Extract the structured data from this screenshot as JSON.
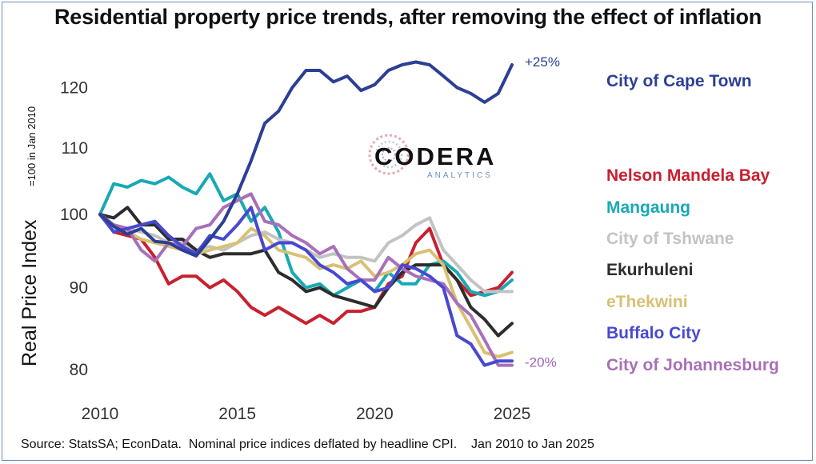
{
  "title": "Residential property price trends, after removing the effect of inflation",
  "source": "Source: StatsSA; EconData.  Nominal price indices deflated by headline CPI.    Jan 2010 to Jan 2025",
  "logo": {
    "name": "CODERA",
    "sub": "ANALYTICS"
  },
  "chart_data": {
    "type": "line",
    "title": "Residential property price trends, after removing the effect of inflation",
    "ylabel": "Real Price Index",
    "ylabel_sub": "=100 in Jan 2010",
    "xlabel": "",
    "y_scale": "log",
    "ylim": [
      78,
      128
    ],
    "xlim": [
      2010,
      2025.3
    ],
    "xticks": [
      "2010",
      "2015",
      "2020",
      "2025"
    ],
    "yticks": [
      "80",
      "90",
      "100",
      "110",
      "120"
    ],
    "grid": false,
    "legend": "right",
    "annotations": [
      {
        "text": "+25%",
        "series": "City of Cape Town",
        "color": "#2c3f94"
      },
      {
        "text": "-20%",
        "series": "City of Johannesburg",
        "color": "#9f62b8"
      }
    ],
    "series": [
      {
        "name": "City of Cape Town",
        "color": "#2c3f94",
        "x": [
          2010.0,
          2010.5,
          2011.0,
          2011.5,
          2012.0,
          2012.5,
          2013.0,
          2013.5,
          2014.0,
          2014.5,
          2015.0,
          2015.5,
          2016.0,
          2016.5,
          2017.0,
          2017.5,
          2018.0,
          2018.5,
          2019.0,
          2019.5,
          2020.0,
          2020.5,
          2021.0,
          2021.5,
          2022.0,
          2022.5,
          2023.0,
          2023.5,
          2024.0,
          2024.5,
          2025.0
        ],
        "y": [
          100,
          98.3,
          97.2,
          98,
          96.2,
          96,
          95,
          94.2,
          96.5,
          99,
          103,
          108,
          114,
          116,
          120,
          123,
          123,
          121,
          122,
          119.5,
          120.5,
          123,
          124,
          124.5,
          124,
          122,
          120,
          119,
          117.5,
          119,
          124
        ]
      },
      {
        "name": "Nelson Mandela Bay",
        "color": "#c8202f",
        "x": [
          2010.0,
          2010.5,
          2011.0,
          2011.5,
          2012.0,
          2012.5,
          2013.0,
          2013.5,
          2014.0,
          2014.5,
          2015.0,
          2015.5,
          2016.0,
          2016.5,
          2017.0,
          2017.5,
          2018.0,
          2018.5,
          2019.0,
          2019.5,
          2020.0,
          2020.5,
          2021.0,
          2021.5,
          2022.0,
          2022.5,
          2023.0,
          2023.5,
          2024.0,
          2024.5,
          2025.0
        ],
        "y": [
          100,
          97.5,
          97,
          96.5,
          94,
          90.5,
          91.5,
          91.5,
          90,
          91,
          89.5,
          87.5,
          86.5,
          87.5,
          86.5,
          85.5,
          86.5,
          85.5,
          87,
          87,
          87.5,
          90.5,
          91.5,
          96,
          98,
          93,
          91,
          89,
          89.5,
          90,
          92
        ]
      },
      {
        "name": "Mangaung",
        "color": "#18a9b5",
        "x": [
          2010.0,
          2010.5,
          2011.0,
          2011.5,
          2012.0,
          2012.5,
          2013.0,
          2013.5,
          2014.0,
          2014.5,
          2015.0,
          2015.5,
          2016.0,
          2016.5,
          2017.0,
          2017.5,
          2018.0,
          2018.5,
          2019.0,
          2019.5,
          2020.0,
          2020.5,
          2021.0,
          2021.5,
          2022.0,
          2022.5,
          2023.0,
          2023.5,
          2024.0,
          2024.5,
          2025.0
        ],
        "y": [
          100,
          104.5,
          104,
          105,
          104.5,
          105.5,
          104,
          103,
          106,
          102,
          103,
          99,
          101,
          97.5,
          92,
          90,
          90.5,
          89,
          90,
          91,
          89.5,
          92,
          90.5,
          90.5,
          93,
          93.5,
          92,
          89.5,
          89,
          89.5,
          91
        ]
      },
      {
        "name": "City of Tshwane",
        "color": "#c3c3c3",
        "x": [
          2010.0,
          2010.5,
          2011.0,
          2011.5,
          2012.0,
          2012.5,
          2013.0,
          2013.5,
          2014.0,
          2014.5,
          2015.0,
          2015.5,
          2016.0,
          2016.5,
          2017.0,
          2017.5,
          2018.0,
          2018.5,
          2019.0,
          2019.5,
          2020.0,
          2020.5,
          2021.0,
          2021.5,
          2022.0,
          2022.5,
          2023.0,
          2023.5,
          2024.0,
          2024.5,
          2025.0
        ],
        "y": [
          100,
          98,
          98,
          97.5,
          97,
          96,
          96,
          95,
          95.5,
          95,
          96,
          97,
          97.5,
          96.5,
          96,
          95,
          94,
          94.5,
          94,
          94,
          93.5,
          96,
          97,
          98.5,
          99.5,
          95,
          93,
          91,
          89.5,
          89.5,
          89.5
        ]
      },
      {
        "name": "Ekurhuleni",
        "color": "#2d2d2d",
        "x": [
          2010.0,
          2010.5,
          2011.0,
          2011.5,
          2012.0,
          2012.5,
          2013.0,
          2013.5,
          2014.0,
          2014.5,
          2015.0,
          2015.5,
          2016.0,
          2016.5,
          2017.0,
          2017.5,
          2018.0,
          2018.5,
          2019.0,
          2019.5,
          2020.0,
          2020.5,
          2021.0,
          2021.5,
          2022.0,
          2022.5,
          2023.0,
          2023.5,
          2024.0,
          2024.5,
          2025.0
        ],
        "y": [
          100,
          99.5,
          101,
          98.5,
          98.5,
          96.5,
          96.5,
          95,
          94,
          94.5,
          94.5,
          94.5,
          95,
          92,
          91,
          89.5,
          90,
          89,
          88.5,
          88,
          87.5,
          90,
          92,
          93,
          93,
          93,
          91,
          87.5,
          86,
          84,
          85.5
        ]
      },
      {
        "name": "eThekwini",
        "color": "#d8c173",
        "x": [
          2010.0,
          2010.5,
          2011.0,
          2011.5,
          2012.0,
          2012.5,
          2013.0,
          2013.5,
          2014.0,
          2014.5,
          2015.0,
          2015.5,
          2016.0,
          2016.5,
          2017.0,
          2017.5,
          2018.0,
          2018.5,
          2019.0,
          2019.5,
          2020.0,
          2020.5,
          2021.0,
          2021.5,
          2022.0,
          2022.5,
          2023.0,
          2023.5,
          2024.0,
          2024.5,
          2025.0
        ],
        "y": [
          100,
          98.5,
          97.5,
          96.5,
          96,
          95.5,
          95,
          94.5,
          95,
          95.5,
          96,
          98,
          97,
          95,
          94.5,
          94,
          92.5,
          93,
          92.5,
          93.5,
          91.5,
          92,
          93,
          94.5,
          95,
          93,
          88,
          85,
          82,
          81.5,
          82
        ]
      },
      {
        "name": "Buffalo City",
        "color": "#4848d1",
        "x": [
          2010.0,
          2010.5,
          2011.0,
          2011.5,
          2012.0,
          2012.5,
          2013.0,
          2013.5,
          2014.0,
          2014.5,
          2015.0,
          2015.5,
          2016.0,
          2016.5,
          2017.0,
          2017.5,
          2018.0,
          2018.5,
          2019.0,
          2019.5,
          2020.0,
          2020.5,
          2021.0,
          2021.5,
          2022.0,
          2022.5,
          2023.0,
          2023.5,
          2024.0,
          2024.5,
          2025.0
        ],
        "y": [
          100,
          97.5,
          98,
          98.5,
          99,
          97,
          95.5,
          94.5,
          97,
          96.5,
          98.5,
          101,
          95,
          96,
          96,
          95,
          93,
          92,
          90.5,
          91,
          89.5,
          90,
          93,
          92.5,
          91.5,
          90,
          84,
          83,
          80.5,
          81,
          81
        ]
      },
      {
        "name": "City of Johannesburg",
        "color": "#a870b8",
        "x": [
          2010.0,
          2010.5,
          2011.0,
          2011.5,
          2012.0,
          2012.5,
          2013.0,
          2013.5,
          2014.0,
          2014.5,
          2015.0,
          2015.5,
          2016.0,
          2016.5,
          2017.0,
          2017.5,
          2018.0,
          2018.5,
          2019.0,
          2019.5,
          2020.0,
          2020.5,
          2021.0,
          2021.5,
          2022.0,
          2022.5,
          2023.0,
          2023.5,
          2024.0,
          2024.5,
          2025.0
        ],
        "y": [
          100,
          98.5,
          98,
          95,
          93.5,
          96,
          95.5,
          98,
          98.5,
          101,
          102,
          103,
          99,
          98.5,
          97,
          96,
          94.5,
          95.5,
          92.5,
          91,
          91,
          94,
          92.5,
          91.5,
          91,
          90.5,
          88,
          86.5,
          83.5,
          80.5,
          80.5
        ]
      }
    ]
  }
}
